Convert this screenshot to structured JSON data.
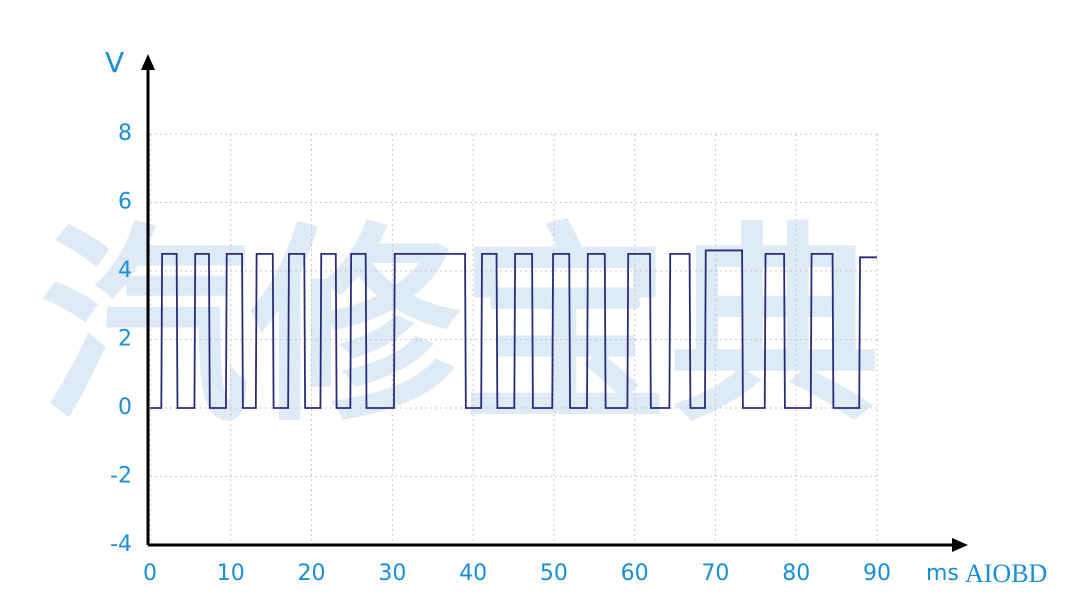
{
  "watermark": "汽修宝典",
  "brand": "AIOBD",
  "chart_data": {
    "type": "line",
    "x_label": "ms",
    "y_label": "V",
    "xlim": [
      0,
      90
    ],
    "ylim": [
      -4,
      8
    ],
    "xticks": [
      0,
      10,
      20,
      30,
      40,
      50,
      60,
      70,
      80,
      90
    ],
    "yticks": [
      -4,
      -2,
      0,
      2,
      4,
      6,
      8
    ],
    "grid": true,
    "x": [
      0,
      1.4,
      1.5,
      3.3,
      3.4,
      5.5,
      5.6,
      7.3,
      7.4,
      9.4,
      9.5,
      11.4,
      11.5,
      13.1,
      13.2,
      15.2,
      15.3,
      17.1,
      17.2,
      19.1,
      19.2,
      21.1,
      21.2,
      23.0,
      23.1,
      24.8,
      24.9,
      26.7,
      26.8,
      30.2,
      30.3,
      39.0,
      39.1,
      41.0,
      41.1,
      42.9,
      43.0,
      45.1,
      45.2,
      47.3,
      47.4,
      49.8,
      49.9,
      51.9,
      52.0,
      54.1,
      54.2,
      56.3,
      56.4,
      59.1,
      59.2,
      61.9,
      62.0,
      64.3,
      64.4,
      66.8,
      66.9,
      68.7,
      68.8,
      73.3,
      73.4,
      76.1,
      76.2,
      78.5,
      78.6,
      81.8,
      81.9,
      84.5,
      84.6,
      87.8,
      87.9,
      90
    ],
    "series": [
      {
        "color": "#2b2b7c",
        "values": [
          0,
          0,
          4.5,
          4.5,
          0,
          0,
          4.5,
          4.5,
          0,
          0,
          4.5,
          4.5,
          0,
          0,
          4.5,
          4.5,
          0,
          0,
          4.5,
          4.5,
          0,
          0,
          4.5,
          4.5,
          0,
          0,
          4.5,
          4.5,
          0,
          0,
          4.5,
          4.5,
          0,
          0,
          4.5,
          4.5,
          0,
          0,
          4.5,
          4.5,
          0,
          0,
          4.5,
          4.5,
          0,
          0,
          4.5,
          4.5,
          0,
          0,
          4.5,
          4.5,
          0,
          0,
          4.5,
          4.5,
          0,
          0,
          4.6,
          4.6,
          0,
          0,
          4.5,
          4.5,
          0,
          0,
          4.5,
          4.5,
          0,
          0,
          4.4,
          4.4
        ]
      }
    ]
  }
}
